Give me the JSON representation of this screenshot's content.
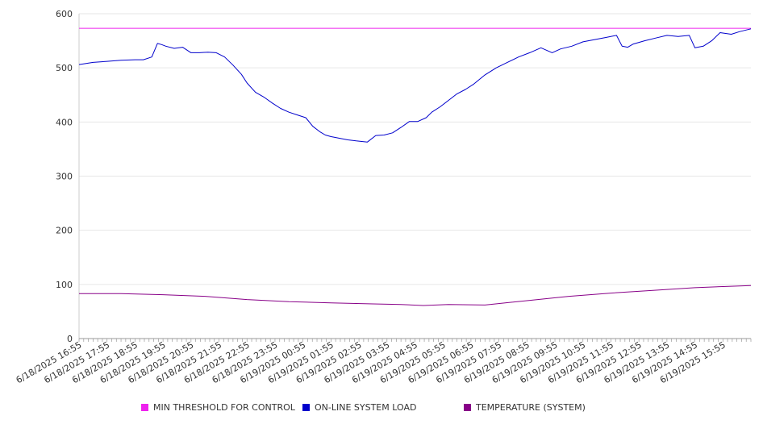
{
  "chart_data": {
    "type": "line",
    "ylim": [
      0,
      600
    ],
    "yticks": [
      0,
      100,
      200,
      300,
      400,
      500,
      600
    ],
    "x_tick_labels": [
      "6/18/2025 16:55",
      "6/18/2025 17:55",
      "6/18/2025 18:55",
      "6/18/2025 19:55",
      "6/18/2025 20:55",
      "6/18/2025 21:55",
      "6/18/2025 22:55",
      "6/18/2025 23:55",
      "6/19/2025 00:55",
      "6/19/2025 01:55",
      "6/19/2025 02:55",
      "6/19/2025 03:55",
      "6/19/2025 04:55",
      "6/19/2025 05:55",
      "6/19/2025 06:55",
      "6/19/2025 07:55",
      "6/19/2025 08:55",
      "6/19/2025 09:55",
      "6/19/2025 10:55",
      "6/19/2025 11:55",
      "6/19/2025 12:55",
      "6/19/2025 13:55",
      "6/19/2025 14:55",
      "6/19/2025 15:55"
    ],
    "x_hours_span": 24,
    "grid": "horizontal",
    "legend_position": "bottom",
    "series": [
      {
        "name": "MIN THRESHOLD FOR CONTROL",
        "color": "#ee22ee",
        "hours": [
          0,
          24
        ],
        "values": [
          573,
          573
        ]
      },
      {
        "name": "ON-LINE SYSTEM LOAD",
        "color": "#0000cc",
        "hours": [
          0,
          0.25,
          0.5,
          1,
          1.5,
          2,
          2.3,
          2.6,
          2.8,
          2.95,
          3.1,
          3.4,
          3.7,
          4.0,
          4.3,
          4.6,
          4.9,
          5.2,
          5.5,
          5.8,
          6.0,
          6.3,
          6.6,
          6.9,
          7.2,
          7.5,
          7.8,
          8.1,
          8.35,
          8.6,
          8.8,
          9.0,
          9.1,
          9.3,
          9.6,
          9.9,
          10.3,
          10.6,
          10.9,
          11.2,
          11.5,
          11.8,
          12.1,
          12.4,
          12.6,
          12.9,
          13.2,
          13.5,
          13.8,
          14.1,
          14.5,
          14.9,
          15.3,
          15.7,
          16.1,
          16.5,
          16.9,
          17.2,
          17.6,
          18.0,
          18.4,
          18.8,
          19.2,
          19.4,
          19.6,
          19.8,
          20.2,
          20.6,
          21.0,
          21.4,
          21.8,
          22.0,
          22.3,
          22.6,
          22.9,
          23.3,
          23.6,
          24.0
        ],
        "values": [
          506,
          508,
          510,
          512,
          514,
          515,
          515,
          520,
          545,
          543,
          540,
          536,
          538,
          528,
          528,
          529,
          528,
          520,
          505,
          488,
          472,
          455,
          446,
          435,
          425,
          418,
          413,
          408,
          392,
          382,
          376,
          373,
          372,
          370,
          367,
          365,
          363,
          375,
          376,
          380,
          390,
          401,
          401,
          408,
          418,
          428,
          440,
          452,
          460,
          470,
          487,
          500,
          510,
          520,
          528,
          537,
          528,
          535,
          540,
          548,
          552,
          556,
          560,
          540,
          538,
          544,
          550,
          555,
          560,
          558,
          560,
          537,
          540,
          550,
          565,
          562,
          567,
          572
        ]
      },
      {
        "name": "TEMPERATURE (SYSTEM)",
        "color": "#880088",
        "hours": [
          0,
          1.5,
          3,
          4.5,
          6,
          7.5,
          9,
          10.5,
          11.5,
          12.3,
          13.2,
          14.5,
          16,
          17.5,
          19,
          20.5,
          22,
          23,
          24
        ],
        "values": [
          83,
          83,
          81,
          78,
          72,
          68,
          66,
          64,
          63,
          61,
          63,
          62,
          70,
          78,
          84,
          89,
          94,
          96,
          98
        ]
      }
    ]
  }
}
